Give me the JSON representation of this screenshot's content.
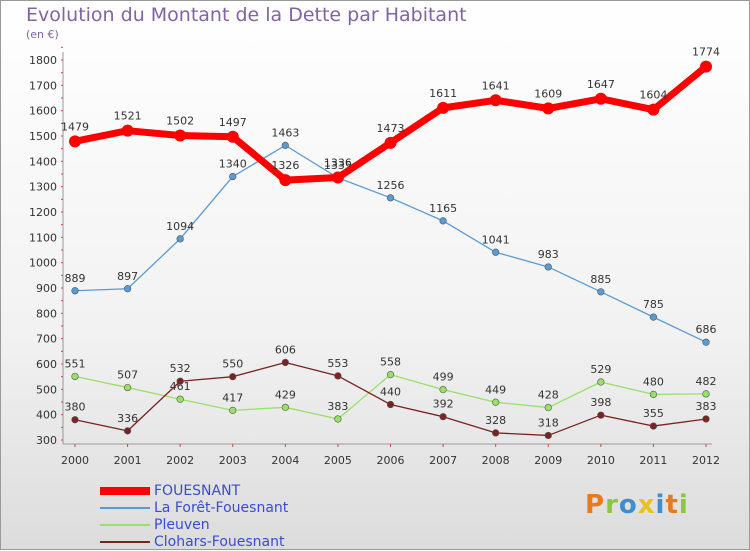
{
  "title": "Evolution du Montant de la Dette par Habitant",
  "unit": "(en €)",
  "logo": {
    "text": "Proxiti",
    "colors": [
      "#e87a1e",
      "#8cc63f",
      "#3b8fd1",
      "#e8c21e",
      "#3b8fd1",
      "#e87a1e",
      "#8cc63f"
    ]
  },
  "chart_data": {
    "type": "line",
    "title": "Evolution du Montant de la Dette par Habitant",
    "ylabel": "(en €)",
    "xlabel": "",
    "x": [
      "2000",
      "2001",
      "2002",
      "2003",
      "2004",
      "2005",
      "2006",
      "2007",
      "2008",
      "2009",
      "2010",
      "2011",
      "2012"
    ],
    "ylim": [
      300,
      1800
    ],
    "yticks": [
      "300",
      "400",
      "500",
      "600",
      "700",
      "800",
      "900",
      "1000",
      "1100",
      "1200",
      "1300",
      "1400",
      "1500",
      "1600",
      "1700",
      "1800"
    ],
    "grid": false,
    "legend_position": "bottom-left",
    "series": [
      {
        "name": "FOUESNANT",
        "color": "#ff0000",
        "values": [
          1479,
          1521,
          1502,
          1497,
          1326,
          1336,
          1473,
          1611,
          1641,
          1609,
          1647,
          1604,
          1774
        ]
      },
      {
        "name": "La Forêt-Fouesnant",
        "color": "#5b9bd5",
        "values": [
          889,
          897,
          1094,
          1340,
          1463,
          1335,
          1256,
          1165,
          1041,
          983,
          885,
          785,
          686
        ]
      },
      {
        "name": "Pleuven",
        "color": "#99e067",
        "values": [
          551,
          507,
          461,
          417,
          429,
          383,
          558,
          499,
          449,
          428,
          529,
          480,
          482
        ]
      },
      {
        "name": "Clohars-Fouesnant",
        "color": "#7b2222",
        "values": [
          380,
          336,
          532,
          550,
          606,
          553,
          440,
          392,
          328,
          318,
          398,
          355,
          383
        ]
      }
    ]
  }
}
